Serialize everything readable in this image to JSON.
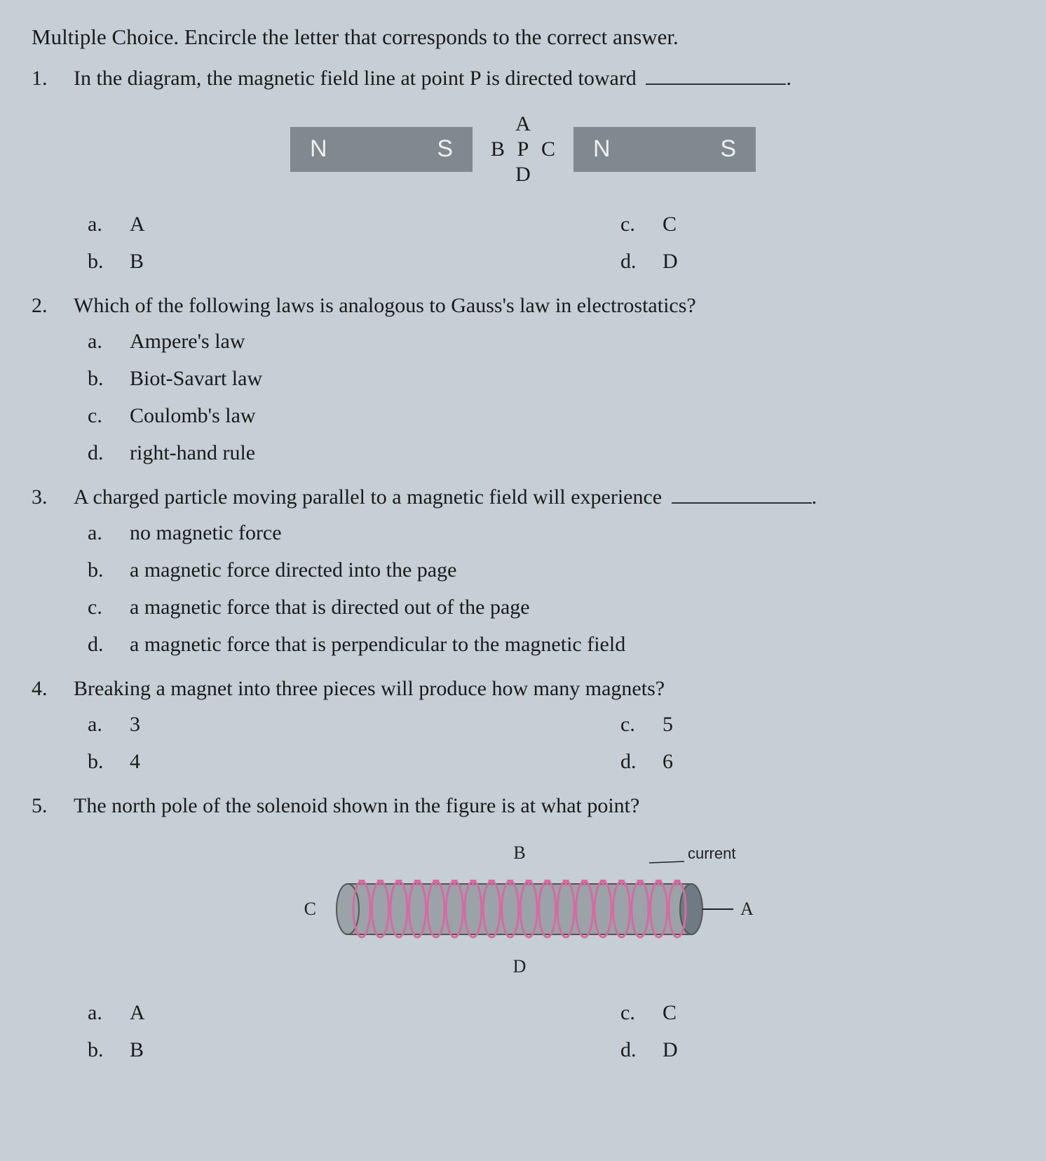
{
  "header": "Multiple Choice. Encircle the letter that corresponds to the correct answer.",
  "questions": [
    {
      "num": "1.",
      "text": "In the diagram, the magnetic field line at point P is directed toward",
      "blank": true,
      "diagram": {
        "magnet_left": {
          "left": "N",
          "right": "S"
        },
        "compass": {
          "n": "A",
          "w": "B",
          "p": "P",
          "e": "C",
          "s": "D"
        },
        "magnet_right": {
          "left": "N",
          "right": "S"
        }
      },
      "opts_left": [
        {
          "l": "a.",
          "t": "A"
        },
        {
          "l": "b.",
          "t": "B"
        }
      ],
      "opts_right": [
        {
          "l": "c.",
          "t": "C"
        },
        {
          "l": "d.",
          "t": "D"
        }
      ]
    },
    {
      "num": "2.",
      "text": "Which of the following laws is analogous to Gauss's law in electrostatics?",
      "opts": [
        {
          "l": "a.",
          "t": "Ampere's law"
        },
        {
          "l": "b.",
          "t": "Biot-Savart law"
        },
        {
          "l": "c.",
          "t": "Coulomb's law"
        },
        {
          "l": "d.",
          "t": "right-hand rule"
        }
      ]
    },
    {
      "num": "3.",
      "text": "A charged particle moving parallel to a magnetic field will experience",
      "blank": true,
      "opts": [
        {
          "l": "a.",
          "t": "no magnetic force"
        },
        {
          "l": "b.",
          "t": "a magnetic force directed into the page"
        },
        {
          "l": "c.",
          "t": "a magnetic force that is directed out of the page"
        },
        {
          "l": "d.",
          "t": "a magnetic force that is perpendicular to the magnetic field"
        }
      ]
    },
    {
      "num": "4.",
      "text": "Breaking a magnet into three pieces will produce how many magnets?",
      "opts_left": [
        {
          "l": "a.",
          "t": "3"
        },
        {
          "l": "b.",
          "t": "4"
        }
      ],
      "opts_right": [
        {
          "l": "c.",
          "t": "5"
        },
        {
          "l": "d.",
          "t": "6"
        }
      ]
    },
    {
      "num": "5.",
      "text": "The north pole of the solenoid shown in the figure is at what point?",
      "solenoid": {
        "labels": {
          "top": "B",
          "bottom": "D",
          "left": "C",
          "right": "A",
          "current": "current"
        },
        "colors": {
          "cylinder_fill": "#9aa3a8",
          "cylinder_stroke": "#555",
          "coil": "#d86aa0",
          "end_fill": "#6f7b82",
          "label": "#222"
        }
      },
      "opts_left": [
        {
          "l": "a.",
          "t": "A"
        },
        {
          "l": "b.",
          "t": "B"
        }
      ],
      "opts_right": [
        {
          "l": "c.",
          "t": "C"
        },
        {
          "l": "d.",
          "t": "D"
        }
      ]
    }
  ]
}
